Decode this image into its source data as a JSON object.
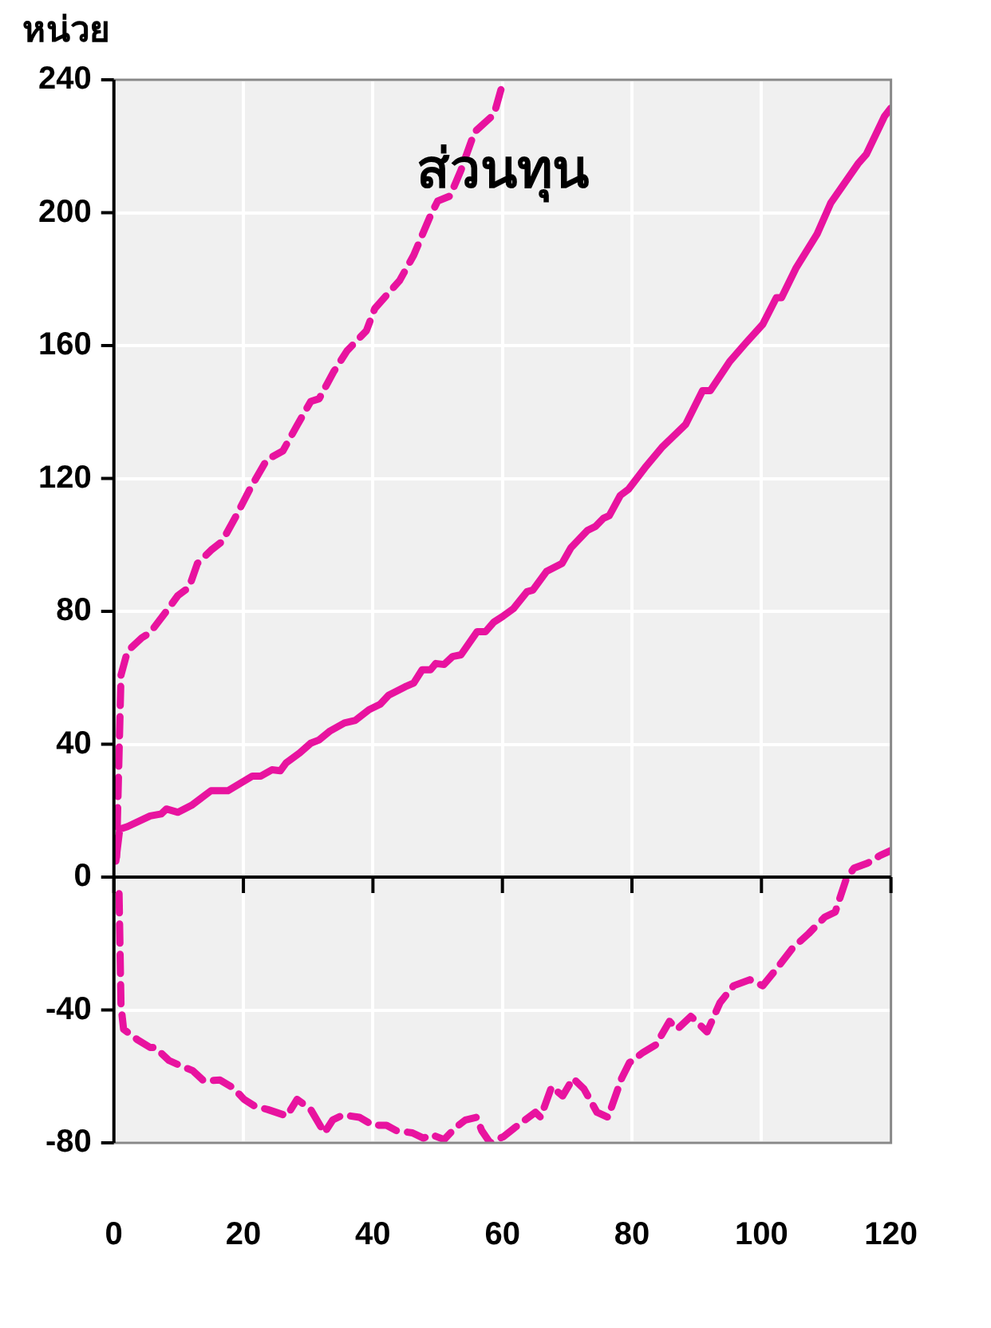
{
  "chart_data": {
    "type": "line",
    "title": "ส่วนทุน",
    "ylabel": "หน่วย",
    "xlim": [
      0,
      120
    ],
    "xticks": [
      0,
      20,
      40,
      60,
      80,
      100,
      120
    ],
    "ylim": [
      -80,
      240
    ],
    "yticks": [
      -80,
      -40,
      0,
      40,
      80,
      120,
      160,
      200,
      240
    ],
    "grid": true,
    "legend": false,
    "marker": "none",
    "series": [
      {
        "color": "#e8139f",
        "line_style": "solid",
        "x": [
          0.3,
          0.9,
          2.1,
          5.6,
          7.3,
          8.1,
          9.9,
          12,
          15,
          17.6,
          21.4,
          22.7,
          24.4,
          25.7,
          26.6,
          28.7,
          30.4,
          31.7,
          33.4,
          35.6,
          37.3,
          39.4,
          41.1,
          42.4,
          45,
          46.3,
          47.6,
          48.9,
          49.7,
          51,
          52.3,
          53.6,
          56.1,
          57.4,
          58.7,
          60,
          61.7,
          63.8,
          64.7,
          66.8,
          69.2,
          70.6,
          73.1,
          74.4,
          75.6,
          76.5,
          78.2,
          79.5,
          82,
          84.6,
          88.3,
          90.9,
          92.1,
          95.1,
          97.6,
          100.2,
          102.3,
          103.1,
          105.3,
          108.6,
          110.7,
          114.9,
          116.2,
          119,
          120
        ],
        "values": [
          4.8,
          14.4,
          15.2,
          18.4,
          19,
          20.5,
          19.5,
          21.6,
          26,
          26,
          30.4,
          30.4,
          32.3,
          32,
          34.4,
          37.4,
          40.3,
          41.3,
          44,
          46.4,
          47.2,
          50.4,
          52,
          54.7,
          57.3,
          58.4,
          62.4,
          62.4,
          64.3,
          64,
          66.4,
          66.9,
          73.9,
          73.9,
          76.8,
          78.4,
          80.8,
          85.9,
          86.4,
          92,
          94.4,
          99.2,
          104.3,
          105.6,
          108,
          108.8,
          114.9,
          116.8,
          123.2,
          129.3,
          136.3,
          146.4,
          146.4,
          155.2,
          160.8,
          166.4,
          174.4,
          174.4,
          183.2,
          193.6,
          202.9,
          214.7,
          217.6,
          229,
          231.5
        ]
      },
      {
        "color": "#e8139f",
        "line_style": "dashed",
        "x": [
          0.4,
          1.1,
          2.1,
          4.3,
          5.6,
          8.1,
          9.9,
          11.6,
          12.9,
          15,
          16.7,
          18.9,
          21,
          23.6,
          26.1,
          28.3,
          30.4,
          31.7,
          33.9,
          36,
          39,
          40.3,
          44.1,
          46.3,
          48.9,
          50,
          51.9,
          53.6,
          55.7,
          58.7,
          60.2
        ],
        "values": [
          6,
          60.8,
          68,
          72,
          73.6,
          80,
          84.8,
          87.2,
          94.4,
          98.4,
          101,
          108.8,
          116.8,
          125.6,
          128.3,
          136,
          143.2,
          144,
          152,
          158.4,
          164.5,
          171.2,
          179.5,
          187.2,
          199.2,
          203.5,
          205,
          212.8,
          224.3,
          229.6,
          240
        ]
      },
      {
        "color": "#e8139f",
        "line_style": "dashed",
        "x": [
          0.8,
          1.1,
          1.5,
          3.6,
          5.6,
          6.4,
          8.5,
          10.2,
          12.2,
          13.9,
          16.4,
          18.4,
          20.1,
          21.7,
          23.8,
          26.7,
          28.3,
          30.4,
          32.5,
          33.8,
          35.4,
          37.9,
          40,
          42.1,
          43.6,
          46.1,
          47.8,
          49,
          51,
          52.7,
          54.3,
          56,
          56.8,
          58.1,
          60.2,
          61.8,
          63.5,
          65.1,
          65.9,
          67.6,
          69.3,
          70.9,
          72.6,
          74.6,
          76.3,
          78.4,
          79.6,
          81.7,
          83.7,
          85.8,
          87,
          89.1,
          91.6,
          93.6,
          95.7,
          98.2,
          100.2,
          102.3,
          104.8,
          107.3,
          109.8,
          111.4,
          113.1,
          114.3,
          116.4,
          118.4,
          120
        ],
        "values": [
          -5,
          -38.8,
          -45.8,
          -48.9,
          -51.3,
          -51.3,
          -55.2,
          -56.7,
          -58.3,
          -61.4,
          -61.1,
          -63.4,
          -66.9,
          -68.9,
          -70,
          -71.9,
          -66.9,
          -70,
          -77,
          -73.1,
          -71.6,
          -72.3,
          -74.7,
          -74.7,
          -76.3,
          -77,
          -78.6,
          -77.5,
          -79,
          -75.5,
          -73.1,
          -72.3,
          -76.3,
          -80,
          -78.1,
          -75.6,
          -73.1,
          -70.8,
          -72.3,
          -63.1,
          -65.9,
          -60.6,
          -63.8,
          -70.8,
          -72.3,
          -60.6,
          -55.9,
          -52.8,
          -50.5,
          -43.4,
          -45.8,
          -41.9,
          -46.6,
          -37.8,
          -32.7,
          -30.9,
          -32.7,
          -27.7,
          -21.4,
          -17,
          -12,
          -10.5,
          -0.5,
          2.7,
          4.2,
          6.6,
          8
        ]
      }
    ]
  }
}
